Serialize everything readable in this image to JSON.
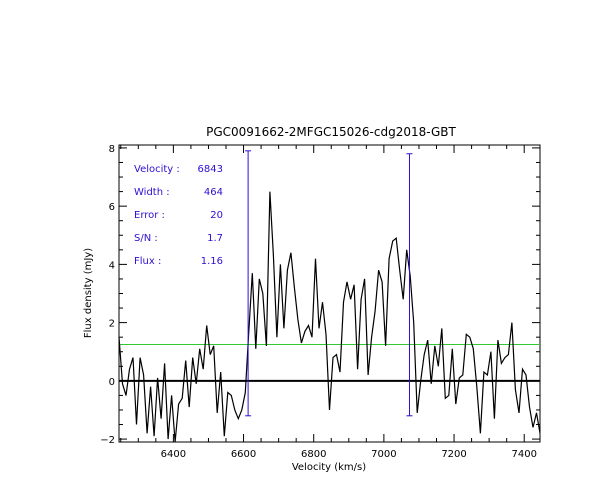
{
  "chart_data": {
    "type": "line",
    "title": "PGC0091662-2MFGC15026-cdg2018-GBT",
    "xlabel": "Velocity (km/s)",
    "ylabel": "Flux density (mJy)",
    "xlim": [
      6245,
      7445
    ],
    "ylim": [
      -2.1,
      8.1
    ],
    "xticks": [
      6400,
      6600,
      6800,
      7000,
      7200,
      7400
    ],
    "xtick_labels": [
      "6400",
      "6600",
      "6800",
      "7000",
      "7200",
      "7400"
    ],
    "yticks": [
      -2,
      0,
      2,
      4,
      6,
      8
    ],
    "ytick_labels": [
      "−2",
      "0",
      "2",
      "4",
      "6",
      "8"
    ],
    "grid": false,
    "series": [
      {
        "color": "#000000",
        "x": [
          6245,
          6255,
          6265,
          6275,
          6285,
          6295,
          6305,
          6315,
          6325,
          6335,
          6345,
          6355,
          6365,
          6375,
          6385,
          6395,
          6405,
          6415,
          6425,
          6435,
          6445,
          6455,
          6465,
          6475,
          6485,
          6495,
          6505,
          6515,
          6525,
          6535,
          6545,
          6555,
          6565,
          6575,
          6585,
          6595,
          6605,
          6615,
          6625,
          6635,
          6645,
          6655,
          6665,
          6675,
          6685,
          6695,
          6705,
          6715,
          6725,
          6735,
          6745,
          6755,
          6765,
          6775,
          6785,
          6795,
          6805,
          6815,
          6825,
          6835,
          6845,
          6855,
          6865,
          6875,
          6885,
          6895,
          6905,
          6915,
          6925,
          6935,
          6945,
          6955,
          6965,
          6975,
          6985,
          6995,
          7005,
          7015,
          7025,
          7035,
          7045,
          7055,
          7065,
          7075,
          7085,
          7095,
          7105,
          7115,
          7125,
          7135,
          7145,
          7155,
          7165,
          7175,
          7185,
          7195,
          7205,
          7215,
          7225,
          7235,
          7245,
          7255,
          7265,
          7275,
          7285,
          7295,
          7305,
          7315,
          7325,
          7335,
          7345,
          7355,
          7365,
          7375,
          7385,
          7395,
          7405,
          7415,
          7425,
          7435,
          7445
        ],
        "y": [
          1.5,
          -0.1,
          -0.5,
          0.4,
          0.8,
          -1.5,
          0.8,
          0.2,
          -1.8,
          -0.2,
          -1.9,
          0.1,
          -1.3,
          0.6,
          -2.0,
          -0.5,
          -2.1,
          -0.8,
          -0.6,
          0.7,
          -0.9,
          0.8,
          -0.1,
          1.1,
          0.4,
          1.9,
          0.9,
          1.2,
          -1.1,
          0.3,
          -1.9,
          -0.4,
          -0.5,
          -1.0,
          -1.3,
          -1.0,
          -0.4,
          1.7,
          3.7,
          1.1,
          3.5,
          3.0,
          1.2,
          6.5,
          4.3,
          1.5,
          4.0,
          1.8,
          3.8,
          4.4,
          3.2,
          2.1,
          1.3,
          1.7,
          1.9,
          1.5,
          4.2,
          1.8,
          2.7,
          1.6,
          -1.0,
          0.8,
          0.9,
          0.3,
          2.7,
          3.4,
          2.8,
          3.3,
          0.4,
          2.8,
          3.5,
          0.2,
          1.5,
          2.4,
          3.8,
          3.4,
          1.2,
          4.2,
          4.8,
          4.9,
          3.8,
          2.8,
          4.5,
          3.6,
          2.0,
          -1.1,
          0.0,
          0.9,
          1.4,
          -0.1,
          1.2,
          0.5,
          1.8,
          -0.6,
          -0.5,
          1.1,
          -0.8,
          0.1,
          0.2,
          1.6,
          1.5,
          1.1,
          -0.2,
          -1.8,
          0.3,
          0.2,
          1.0,
          -1.3,
          1.4,
          0.6,
          0.8,
          0.9,
          2.0,
          -0.3,
          -1.1,
          0.4,
          0.2,
          -0.9,
          -1.6,
          -1.1,
          -1.8
        ]
      }
    ],
    "horizontal_lines": [
      {
        "y": 0,
        "color": "#000000"
      },
      {
        "y": 1.25,
        "color": "#32c832"
      }
    ],
    "markers": [
      {
        "x": 6613,
        "y_top": 7.9,
        "y_bottom": -1.2,
        "color": "#2d0fd2"
      },
      {
        "x": 7073,
        "y_top": 7.8,
        "y_bottom": -1.2,
        "color": "#2d0fd2"
      }
    ],
    "annotations": [
      {
        "label": "Velocity :",
        "value": "6843"
      },
      {
        "label": "Width :",
        "value": "464"
      },
      {
        "label": "Error :",
        "value": "20"
      },
      {
        "label": "S/N :",
        "value": "1.7"
      },
      {
        "label": "Flux :",
        "value": "1.16"
      }
    ]
  }
}
